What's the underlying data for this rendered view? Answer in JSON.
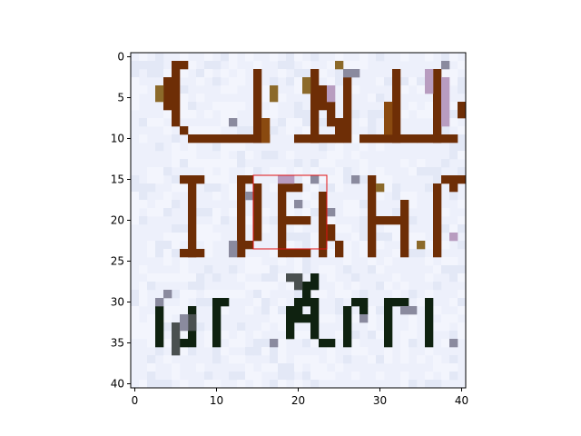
{
  "axes": {
    "x_ticks": [
      0,
      10,
      20,
      30,
      40
    ],
    "y_ticks": [
      0,
      5,
      10,
      15,
      20,
      25,
      30,
      35,
      40
    ],
    "xlim": [
      -0.5,
      40.5
    ],
    "ylim": [
      40.5,
      -0.5
    ],
    "y_inverted": true
  },
  "image_grid": {
    "cols": 41,
    "rows": 41,
    "background": "#edf0fb"
  },
  "colors": {
    "brown": "#6e2e06",
    "brown_light": "#8a4a10",
    "olive": "#8c6a2a",
    "gray": "#8a8a9e",
    "lilac": "#b89cc0",
    "dark_green": "#0f2210",
    "dark_gray": "#4a5050",
    "highlight": "#e01010"
  },
  "highlight_box": {
    "x0": 14.5,
    "y0": 14.5,
    "x1": 23.5,
    "y1": 23.5
  },
  "strokes": [
    {
      "c": "brown",
      "x0": 5,
      "y0": 2,
      "x1": 5,
      "y1": 8
    },
    {
      "c": "brown",
      "x0": 4,
      "y0": 3,
      "x1": 4,
      "y1": 6
    },
    {
      "c": "brown",
      "x0": 5,
      "y0": 1,
      "x1": 6,
      "y1": 1
    },
    {
      "c": "brown",
      "x0": 6,
      "y0": 9,
      "x1": 6,
      "y1": 9
    },
    {
      "c": "brown",
      "x0": 7,
      "y0": 10,
      "x1": 11,
      "y1": 10
    },
    {
      "c": "brown",
      "x0": 12,
      "y0": 10,
      "x1": 16,
      "y1": 10
    },
    {
      "c": "brown",
      "x0": 15,
      "y0": 2,
      "x1": 15,
      "y1": 10
    },
    {
      "c": "brown",
      "x0": 20,
      "y0": 10,
      "x1": 24,
      "y1": 10
    },
    {
      "c": "brown",
      "x0": 22,
      "y0": 2,
      "x1": 22,
      "y1": 10
    },
    {
      "c": "brown",
      "x0": 23,
      "y0": 4,
      "x1": 23,
      "y1": 6
    },
    {
      "c": "brown",
      "x0": 24,
      "y0": 6,
      "x1": 24,
      "y1": 8
    },
    {
      "c": "brown",
      "x0": 25,
      "y0": 8,
      "x1": 25,
      "y1": 10
    },
    {
      "c": "brown",
      "x0": 26,
      "y0": 2,
      "x1": 26,
      "y1": 10
    },
    {
      "c": "brown",
      "x0": 28,
      "y0": 10,
      "x1": 34,
      "y1": 10
    },
    {
      "c": "brown",
      "x0": 32,
      "y0": 2,
      "x1": 32,
      "y1": 10
    },
    {
      "c": "brown",
      "x0": 35,
      "y0": 10,
      "x1": 39,
      "y1": 10
    },
    {
      "c": "brown",
      "x0": 37,
      "y0": 2,
      "x1": 37,
      "y1": 10
    },
    {
      "c": "brown",
      "x0": 40,
      "y0": 6,
      "x1": 40,
      "y1": 7
    },
    {
      "c": "brown",
      "x0": 7,
      "y0": 16,
      "x1": 7,
      "y1": 24
    },
    {
      "c": "brown",
      "x0": 6,
      "y0": 15,
      "x1": 8,
      "y1": 15
    },
    {
      "c": "brown",
      "x0": 6,
      "y0": 24,
      "x1": 8,
      "y1": 24
    },
    {
      "c": "brown",
      "x0": 13,
      "y0": 15,
      "x1": 13,
      "y1": 24
    },
    {
      "c": "brown",
      "x0": 14,
      "y0": 15,
      "x1": 14,
      "y1": 15
    },
    {
      "c": "brown",
      "x0": 14,
      "y0": 23,
      "x1": 14,
      "y1": 23
    },
    {
      "c": "brown",
      "x0": 15,
      "y0": 16,
      "x1": 15,
      "y1": 22
    },
    {
      "c": "brown",
      "x0": 18,
      "y0": 16,
      "x1": 18,
      "y1": 24
    },
    {
      "c": "brown",
      "x0": 19,
      "y0": 16,
      "x1": 20,
      "y1": 16
    },
    {
      "c": "brown",
      "x0": 19,
      "y0": 20,
      "x1": 21,
      "y1": 20
    },
    {
      "c": "brown",
      "x0": 19,
      "y0": 24,
      "x1": 21,
      "y1": 24
    },
    {
      "c": "brown",
      "x0": 23,
      "y0": 17,
      "x1": 23,
      "y1": 24
    },
    {
      "c": "brown",
      "x0": 24,
      "y0": 21,
      "x1": 24,
      "y1": 22
    },
    {
      "c": "brown",
      "x0": 25,
      "y0": 23,
      "x1": 25,
      "y1": 24
    },
    {
      "c": "brown",
      "x0": 29,
      "y0": 15,
      "x1": 29,
      "y1": 24
    },
    {
      "c": "brown",
      "x0": 30,
      "y0": 20,
      "x1": 32,
      "y1": 20
    },
    {
      "c": "brown",
      "x0": 33,
      "y0": 18,
      "x1": 33,
      "y1": 24
    },
    {
      "c": "brown",
      "x0": 37,
      "y0": 16,
      "x1": 37,
      "y1": 24
    },
    {
      "c": "brown",
      "x0": 38,
      "y0": 15,
      "x1": 40,
      "y1": 15
    },
    {
      "c": "brown",
      "x0": 39,
      "y0": 16,
      "x1": 39,
      "y1": 16
    },
    {
      "c": "olive",
      "x0": 3,
      "y0": 4,
      "x1": 3,
      "y1": 5
    },
    {
      "c": "olive",
      "x0": 17,
      "y0": 4,
      "x1": 17,
      "y1": 5
    },
    {
      "c": "olive",
      "x0": 25,
      "y0": 1,
      "x1": 25,
      "y1": 1
    },
    {
      "c": "olive",
      "x0": 30,
      "y0": 16,
      "x1": 30,
      "y1": 16
    },
    {
      "c": "olive",
      "x0": 35,
      "y0": 23,
      "x1": 35,
      "y1": 23
    },
    {
      "c": "olive",
      "x0": 21,
      "y0": 3,
      "x1": 21,
      "y1": 4
    },
    {
      "c": "gray",
      "x0": 12,
      "y0": 8,
      "x1": 12,
      "y1": 8
    },
    {
      "c": "gray",
      "x0": 12,
      "y0": 23,
      "x1": 12,
      "y1": 24
    },
    {
      "c": "gray",
      "x0": 14,
      "y0": 17,
      "x1": 14,
      "y1": 17
    },
    {
      "c": "gray",
      "x0": 20,
      "y0": 18,
      "x1": 20,
      "y1": 18
    },
    {
      "c": "gray",
      "x0": 22,
      "y0": 15,
      "x1": 22,
      "y1": 15
    },
    {
      "c": "gray",
      "x0": 24,
      "y0": 19,
      "x1": 24,
      "y1": 19
    },
    {
      "c": "gray",
      "x0": 27,
      "y0": 15,
      "x1": 27,
      "y1": 15
    },
    {
      "c": "gray",
      "x0": 38,
      "y0": 1,
      "x1": 38,
      "y1": 1
    },
    {
      "c": "gray",
      "x0": 26,
      "y0": 2,
      "x1": 27,
      "y1": 2
    },
    {
      "c": "lilac",
      "x0": 24,
      "y0": 4,
      "x1": 24,
      "y1": 5
    },
    {
      "c": "lilac",
      "x0": 36,
      "y0": 2,
      "x1": 36,
      "y1": 4
    },
    {
      "c": "lilac",
      "x0": 38,
      "y0": 3,
      "x1": 38,
      "y1": 8
    },
    {
      "c": "lilac",
      "x0": 18,
      "y0": 15,
      "x1": 19,
      "y1": 15
    },
    {
      "c": "lilac",
      "x0": 39,
      "y0": 22,
      "x1": 39,
      "y1": 22
    },
    {
      "c": "dark_green",
      "x0": 3,
      "y0": 31,
      "x1": 3,
      "y1": 35
    },
    {
      "c": "dark_green",
      "x0": 7,
      "y0": 31,
      "x1": 7,
      "y1": 35
    },
    {
      "c": "dark_green",
      "x0": 6,
      "y0": 35,
      "x1": 6,
      "y1": 35
    },
    {
      "c": "dark_green",
      "x0": 10,
      "y0": 30,
      "x1": 10,
      "y1": 35
    },
    {
      "c": "dark_green",
      "x0": 11,
      "y0": 30,
      "x1": 11,
      "y1": 30
    },
    {
      "c": "dark_green",
      "x0": 19,
      "y0": 31,
      "x1": 19,
      "y1": 34
    },
    {
      "c": "dark_green",
      "x0": 20,
      "y0": 30,
      "x1": 20,
      "y1": 31
    },
    {
      "c": "dark_green",
      "x0": 21,
      "y0": 28,
      "x1": 21,
      "y1": 30
    },
    {
      "c": "dark_green",
      "x0": 22,
      "y0": 27,
      "x1": 22,
      "y1": 28
    },
    {
      "c": "dark_green",
      "x0": 19,
      "y0": 32,
      "x1": 21,
      "y1": 32
    },
    {
      "c": "dark_green",
      "x0": 22,
      "y0": 30,
      "x1": 22,
      "y1": 34
    },
    {
      "c": "dark_green",
      "x0": 23,
      "y0": 35,
      "x1": 24,
      "y1": 35
    },
    {
      "c": "dark_green",
      "x0": 26,
      "y0": 31,
      "x1": 26,
      "y1": 35
    },
    {
      "c": "dark_green",
      "x0": 27,
      "y0": 30,
      "x1": 28,
      "y1": 30
    },
    {
      "c": "dark_green",
      "x0": 28,
      "y0": 31,
      "x1": 28,
      "y1": 31
    },
    {
      "c": "dark_green",
      "x0": 31,
      "y0": 30,
      "x1": 31,
      "y1": 35
    },
    {
      "c": "dark_green",
      "x0": 32,
      "y0": 30,
      "x1": 33,
      "y1": 30
    },
    {
      "c": "dark_green",
      "x0": 36,
      "y0": 30,
      "x1": 36,
      "y1": 35
    },
    {
      "c": "dark_gray",
      "x0": 5,
      "y0": 33,
      "x1": 5,
      "y1": 36
    },
    {
      "c": "dark_gray",
      "x0": 7,
      "y0": 32,
      "x1": 7,
      "y1": 33
    },
    {
      "c": "dark_gray",
      "x0": 19,
      "y0": 27,
      "x1": 20,
      "y1": 27
    },
    {
      "c": "dark_gray",
      "x0": 20,
      "y0": 28,
      "x1": 20,
      "y1": 28
    },
    {
      "c": "gray",
      "x0": 3,
      "y0": 30,
      "x1": 3,
      "y1": 30
    },
    {
      "c": "gray",
      "x0": 4,
      "y0": 29,
      "x1": 4,
      "y1": 29
    },
    {
      "c": "gray",
      "x0": 6,
      "y0": 32,
      "x1": 6,
      "y1": 33
    },
    {
      "c": "gray",
      "x0": 17,
      "y0": 35,
      "x1": 17,
      "y1": 35
    },
    {
      "c": "gray",
      "x0": 28,
      "y0": 32,
      "x1": 28,
      "y1": 32
    },
    {
      "c": "gray",
      "x0": 33,
      "y0": 31,
      "x1": 34,
      "y1": 31
    },
    {
      "c": "gray",
      "x0": 39,
      "y0": 35,
      "x1": 39,
      "y1": 35
    },
    {
      "c": "brown_light",
      "x0": 16,
      "y0": 8,
      "x1": 16,
      "y1": 10
    },
    {
      "c": "brown_light",
      "x0": 31,
      "y0": 6,
      "x1": 31,
      "y1": 9
    }
  ]
}
